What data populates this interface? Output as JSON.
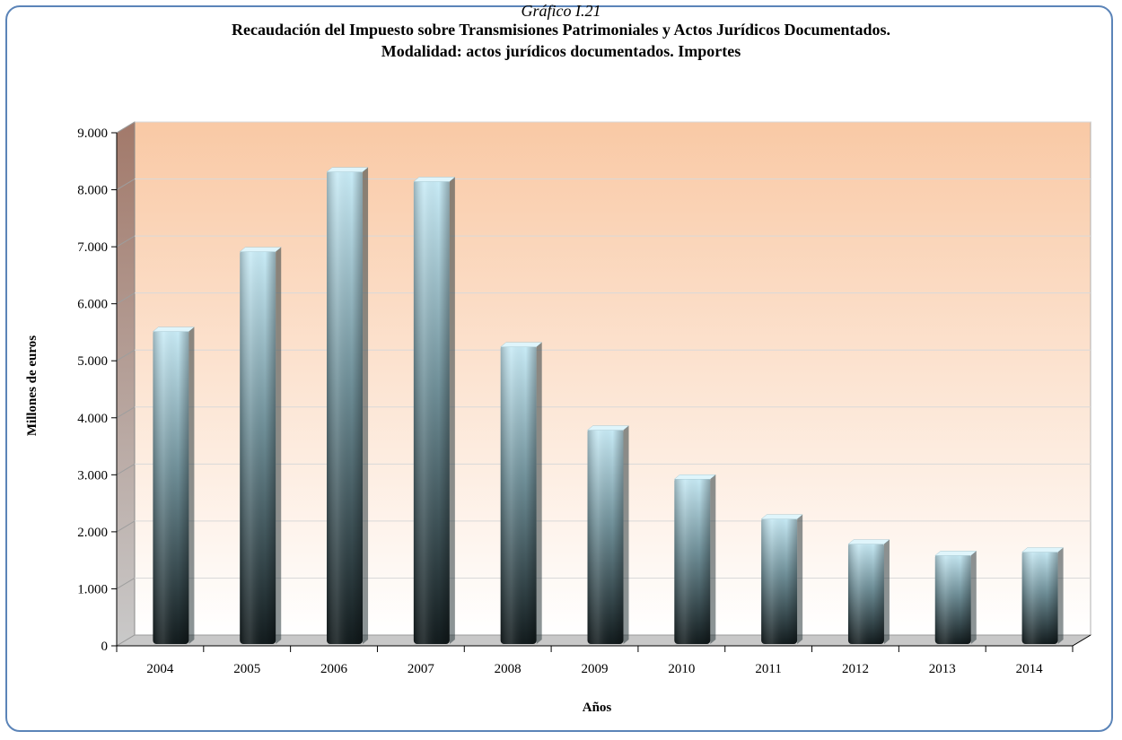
{
  "chart_data": {
    "type": "bar",
    "label": "Gráfico I.21",
    "title": "Recaudación del Impuesto sobre Transmisiones Patrimoniales y Actos Jurídicos Documentados.",
    "subtitle": "Modalidad: actos jurídicos documentados.  Importes",
    "xlabel": "Años",
    "ylabel": "Millones de euros",
    "categories": [
      "2004",
      "2005",
      "2006",
      "2007",
      "2008",
      "2009",
      "2010",
      "2011",
      "2012",
      "2013",
      "2014"
    ],
    "values": [
      5450,
      6850,
      8250,
      8080,
      5180,
      3720,
      2860,
      2160,
      1720,
      1520,
      1580
    ],
    "ylim": [
      0,
      9000
    ],
    "yticks": [
      0,
      1000,
      2000,
      3000,
      4000,
      5000,
      6000,
      7000,
      8000,
      9000
    ],
    "ytick_labels": [
      "0",
      "1.000",
      "2.000",
      "3.000",
      "4.000",
      "5.000",
      "6.000",
      "7.000",
      "8.000",
      "9.000"
    ],
    "grid": true,
    "legend": "none",
    "colors": {
      "bar_top": "#c9ecf7",
      "bar_bottom": "#121b1d",
      "bg_top": "#f9c9a5",
      "bg_bottom": "#ffffff",
      "frame": "#5b84b8"
    }
  }
}
